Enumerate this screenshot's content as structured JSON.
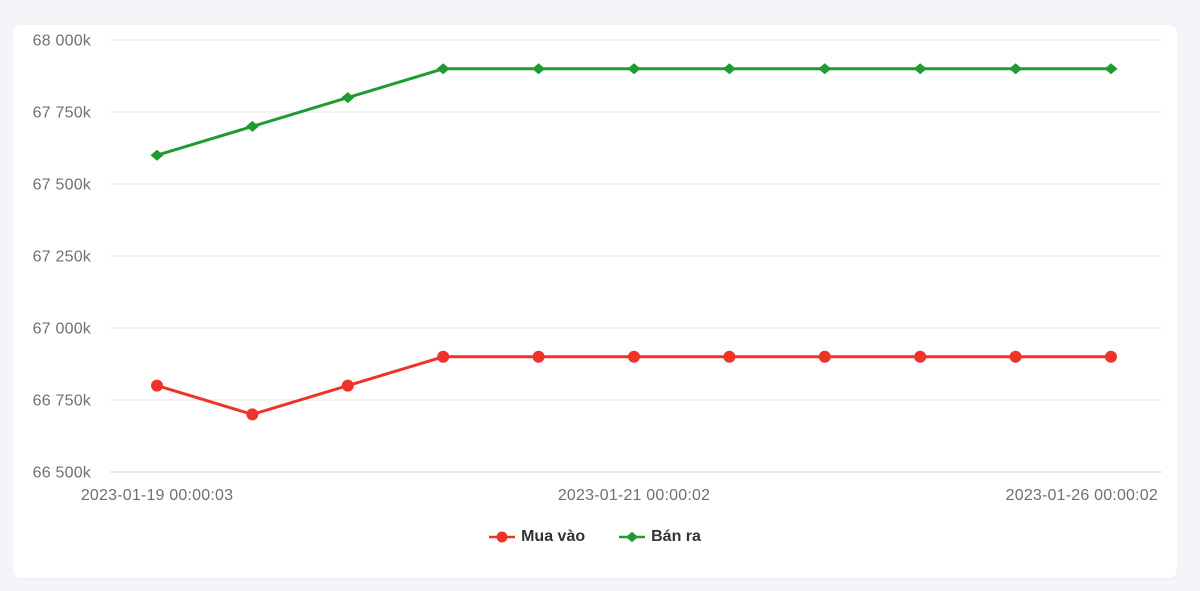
{
  "page": {
    "background_color": "#f3f5f9",
    "card_background_color": "#ffffff"
  },
  "chart_data": {
    "type": "line",
    "title": "",
    "x_count": 11,
    "x_tick_labels": [
      {
        "index": 0,
        "label": "2023-01-19 00:00:03",
        "align": "center"
      },
      {
        "index": 5,
        "label": "2023-01-21 00:00:02",
        "align": "center"
      },
      {
        "index": 10,
        "label": "2023-01-26 00:00:02",
        "align": "right"
      }
    ],
    "y_axis": {
      "min": 66500,
      "max": 68000,
      "step": 250,
      "tick_labels": [
        "68 000k",
        "67 750k",
        "67 500k",
        "67 250k",
        "67 000k",
        "66 750k",
        "66 500k"
      ]
    },
    "grid": {
      "color": "#e7e7e7",
      "axis_line_color": "#ccd6eb",
      "grid_on": true
    },
    "legend_position": "bottom-center",
    "series": [
      {
        "name": "Mua vào",
        "color": "#ee342a",
        "marker": "circle",
        "values": [
          66800,
          66700,
          66800,
          66900,
          66900,
          66900,
          66900,
          66900,
          66900,
          66900,
          66900
        ]
      },
      {
        "name": "Bán ra",
        "color": "#1f9b32",
        "marker": "diamond",
        "values": [
          67600,
          67700,
          67800,
          67900,
          67900,
          67900,
          67900,
          67900,
          67900,
          67900,
          67900
        ]
      }
    ]
  }
}
